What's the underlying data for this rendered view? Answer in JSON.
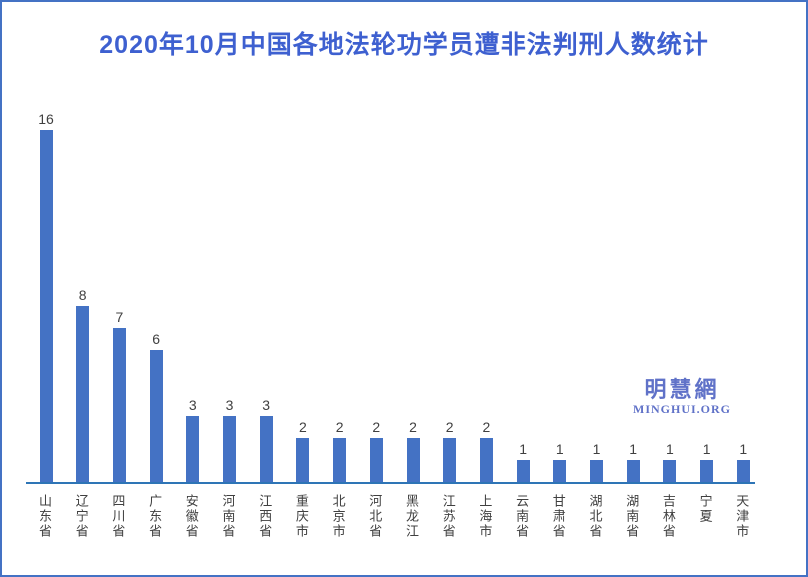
{
  "title": "2020年10月中国各地法轮功学员遭非法判刑人数统计",
  "logo": {
    "cjk": "明慧網",
    "latin": "MINGHUI.ORG"
  },
  "colors": {
    "bar": "#4472C4",
    "axis_line": "#2E75B6",
    "title_text": "#3E60D0",
    "frame_border": "#4472C4",
    "data_label": "#404040",
    "logo_text": "#6072C8"
  },
  "chart_data": {
    "type": "bar",
    "title": "2020年10月中国各地法轮功学员遭非法判刑人数统计",
    "categories": [
      "山东省",
      "辽宁省",
      "四川省",
      "广东省",
      "安徽省",
      "河南省",
      "江西省",
      "重庆市",
      "北京市",
      "河北省",
      "黑龙江",
      "江苏省",
      "上海市",
      "云南省",
      "甘肃省",
      "湖北省",
      "湖南省",
      "吉林省",
      "宁夏",
      "天津市"
    ],
    "values": [
      16,
      8,
      7,
      6,
      3,
      3,
      3,
      2,
      2,
      2,
      2,
      2,
      2,
      1,
      1,
      1,
      1,
      1,
      1,
      1
    ],
    "xlabel": "",
    "ylabel": "",
    "ylim": [
      0,
      17
    ],
    "grid": false,
    "legend": false,
    "data_labels": true,
    "bar_color": "#4472C4",
    "x_label_orientation": "vertical"
  }
}
